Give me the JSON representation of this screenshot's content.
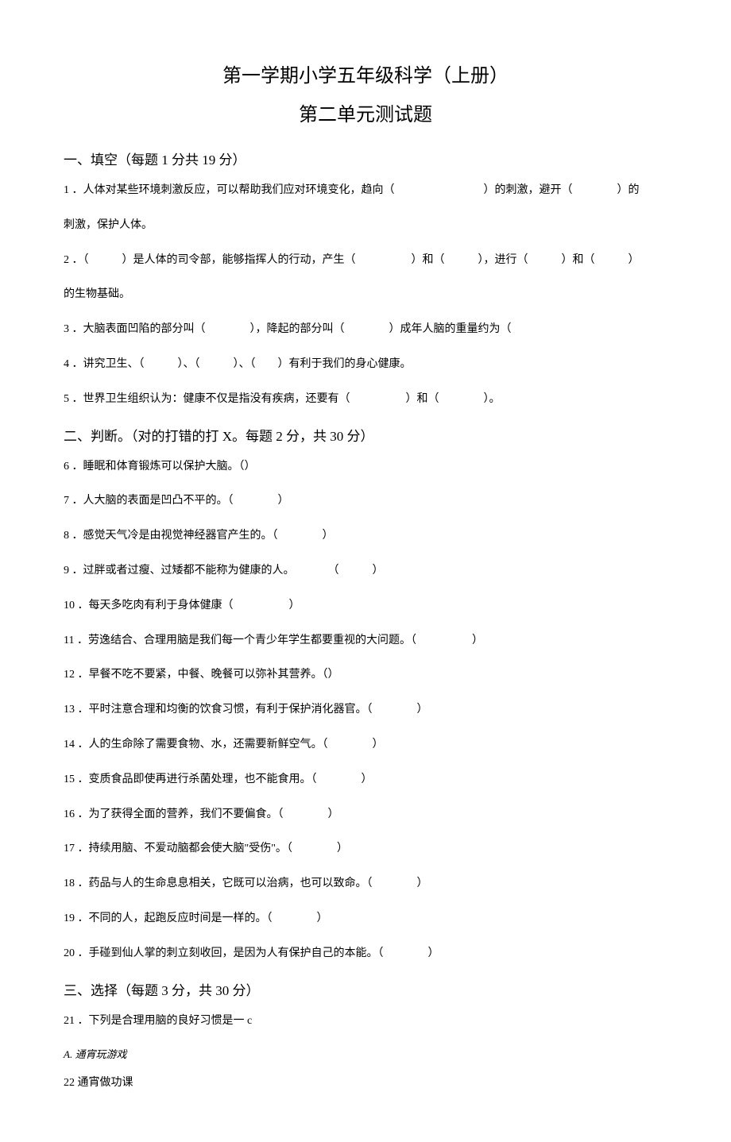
{
  "title": {
    "main": "第一学期小学五年级科学（上册）",
    "sub": "第二单元测试题"
  },
  "sections": {
    "s1": {
      "header": "一、填空（每题 1 分共 19 分）",
      "questions": {
        "q1": "1 ．人体对某些环境刺激反应，可以帮助我们应对环境变化，趋向（　　　　　　　　）的刺激，避开（　　　　）的",
        "q1b": "刺激，保护人体。",
        "q2": "2 ．（　　　）是人体的司令部，能够指挥人的行动，产生（　　　　　）和（　　　），进行（　　　）和（　　　）",
        "q2b": "的生物基础。",
        "q3": "3 ．大脑表面凹陷的部分叫（　　　　），降起的部分叫（　　　　）成年人脑的重量约为（",
        "q4": "4 ．讲究卫生、（　　　）、（　　　）、（　　）有利于我们的身心健康。",
        "q5": "5 ．世界卫生组织认为：健康不仅是指没有疾病，还要有（　　　　　）和（　　　　）。"
      }
    },
    "s2": {
      "header": "二、判断。（对的打错的打 X。每题 2 分，共 30 分）",
      "questions": {
        "q6": "6 ．睡眠和体育锻炼可以保护大脑。（）",
        "q7": "7 ．人大脑的表面是凹凸不平的。（　　　　）",
        "q8": "8 ．感觉天气冷是由视觉神经器官产生的。（　　　　）",
        "q9": "9 ．过胖或者过瘦、过矮都不能称为健康的人。　　　　（　　　）",
        "q10": "10 ．每天多吃肉有利于身体健康（　　　　　）",
        "q11": "11 ．劳逸结合、合理用脑是我们每一个青少年学生都要重视的大问题。（　　　　　）",
        "q12": "12 ．早餐不吃不要紧，中餐、晚餐可以弥补其营养。（）",
        "q13": "13 ．平时注意合理和均衡的饮食习惯，有利于保护消化器官。（　　　　）",
        "q14": "14 ．人的生命除了需要食物、水，还需要新鲜空气。（　　　　）",
        "q15": "15 ．变质食品即使再进行杀菌处理，也不能食用。（　　　　）",
        "q16": "16 ．为了获得全面的营养，我们不要偏食。（　　　　）",
        "q17": "17 ．持续用脑、不爱动脑都会使大脑\"受伤\"。（　　　　）",
        "q18": "18 ．药品与人的生命息息相关，它既可以治病，也可以致命。（　　　　）",
        "q19": "19 ．不同的人，起跑反应时间是一样的。（　　　　）",
        "q20": "20 ．手碰到仙人掌的刺立刻收回，是因为人有保护自己的本能。（　　　　）"
      }
    },
    "s3": {
      "header": "三、选择（每题 3 分，共 30 分）",
      "questions": {
        "q21": "21 ．下列是合理用脑的良好习惯是一 c",
        "optA": "A. 通宵玩游戏",
        "q22": "22  通宵做功课"
      }
    }
  }
}
